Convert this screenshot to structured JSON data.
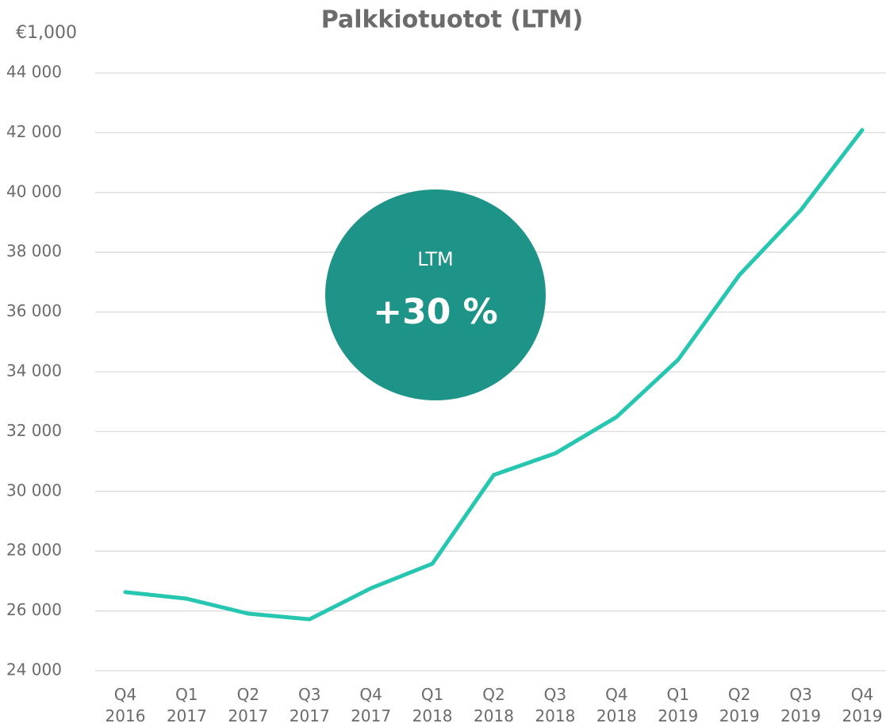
{
  "chart_data": {
    "type": "line",
    "title": "Palkkiotuotot (LTM)",
    "unit_label": "€1,000",
    "categories": [
      "Q4 2016",
      "Q1 2017",
      "Q2 2017",
      "Q3 2017",
      "Q4 2017",
      "Q1 2018",
      "Q2 2018",
      "Q3 2018",
      "Q4 2018",
      "Q1 2019",
      "Q2 2019",
      "Q3 2019",
      "Q4 2019"
    ],
    "series": [
      {
        "name": "Palkkiotuotot",
        "color": "#26c6b0",
        "values": [
          26630,
          26410,
          25910,
          25720,
          26760,
          27580,
          30550,
          31270,
          32490,
          34400,
          37240,
          39410,
          42090
        ]
      }
    ],
    "ylim": [
      24000,
      44000
    ],
    "yticks": [
      {
        "value": 24000,
        "label": "24 000"
      },
      {
        "value": 26000,
        "label": "26 000"
      },
      {
        "value": 28000,
        "label": "28 000"
      },
      {
        "value": 30000,
        "label": "30 000"
      },
      {
        "value": 32000,
        "label": "32 000"
      },
      {
        "value": 34000,
        "label": "34 000"
      },
      {
        "value": 36000,
        "label": "36 000"
      },
      {
        "value": 38000,
        "label": "38 000"
      },
      {
        "value": 40000,
        "label": "40 000"
      },
      {
        "value": 42000,
        "label": "42 000"
      },
      {
        "value": 44000,
        "label": "44 000"
      }
    ],
    "grid": true,
    "annotation": {
      "label": "LTM",
      "value_text": "+30 %",
      "color": "#1e9488"
    }
  }
}
